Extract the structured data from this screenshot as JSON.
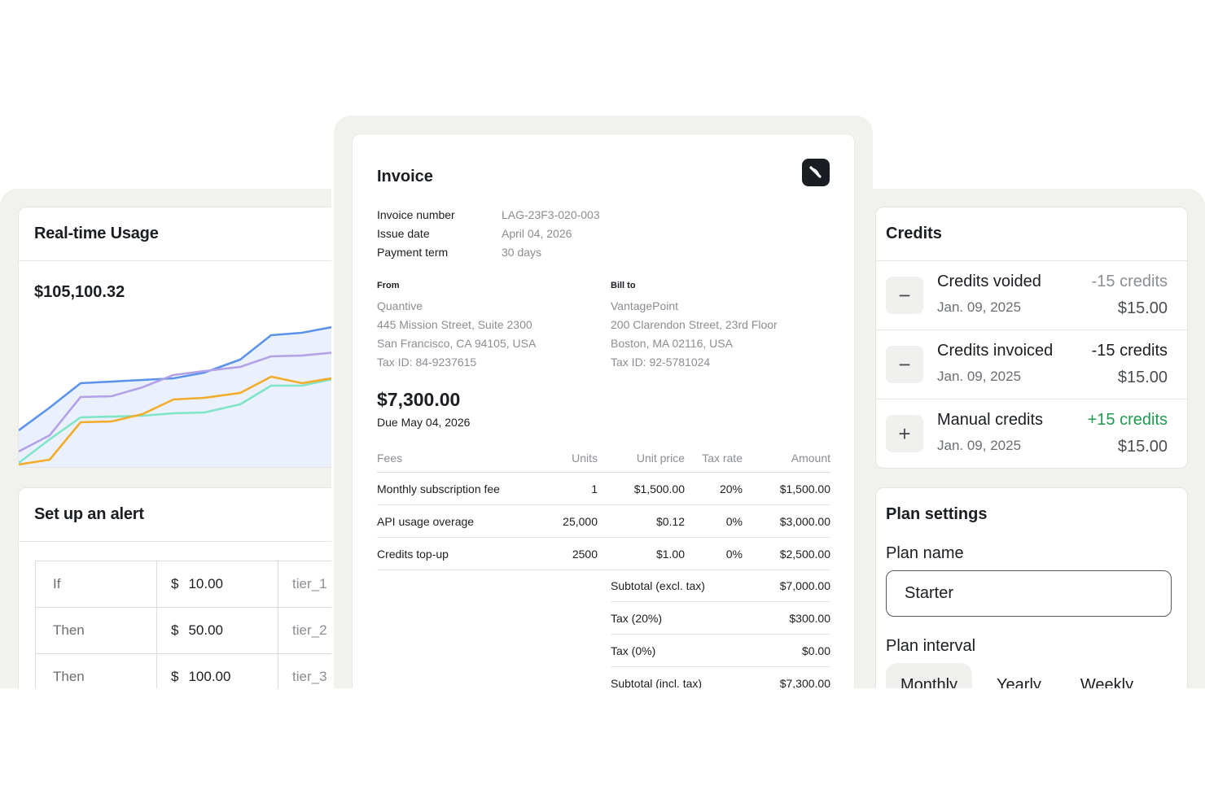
{
  "usage": {
    "title": "Real-time Usage",
    "amount": "$105,100.32",
    "colors": {
      "blue": "#5b93ea",
      "purple": "#b3a2e8",
      "teal": "#7fe5c6",
      "orange": "#f3ab2a",
      "fill": "#e6eefb"
    }
  },
  "alert": {
    "title": "Set up an alert",
    "rows": [
      {
        "cond": "If",
        "currency": "$",
        "value": "10.00",
        "tier": "tier_1"
      },
      {
        "cond": "Then",
        "currency": "$",
        "value": "50.00",
        "tier": "tier_2"
      },
      {
        "cond": "Then",
        "currency": "$",
        "value": "100.00",
        "tier": "tier_3"
      }
    ]
  },
  "invoice": {
    "title": "Invoice",
    "meta": [
      {
        "label": "Invoice number",
        "value": "LAG-23F3-020-003"
      },
      {
        "label": "Issue date",
        "value": "April 04, 2026"
      },
      {
        "label": "Payment term",
        "value": "30 days"
      }
    ],
    "from": {
      "label": "From",
      "lines": [
        "Quantive",
        "445 Mission Street, Suite 2300",
        "San Francisco, CA 94105, USA",
        "Tax ID: 84-9237615"
      ]
    },
    "bill_to": {
      "label": "Bill to",
      "lines": [
        "VantagePoint",
        "200 Clarendon Street, 23rd Floor",
        "Boston, MA 02116, USA",
        "Tax ID: 92-5781024"
      ]
    },
    "total": "$7,300.00",
    "due": "Due May 04, 2026",
    "fees_headers": [
      "Fees",
      "Units",
      "Unit price",
      "Tax rate",
      "Amount"
    ],
    "fees": [
      [
        "Monthly subscription fee",
        "1",
        "$1,500.00",
        "20%",
        "$1,500.00"
      ],
      [
        "API usage overage",
        "25,000",
        "$0.12",
        "0%",
        "$3,000.00"
      ],
      [
        "Credits top-up",
        "2500",
        "$1.00",
        "0%",
        "$2,500.00"
      ]
    ],
    "summary": [
      {
        "label": "Subtotal (excl. tax)",
        "value": "$7,000.00"
      },
      {
        "label": "Tax (20%)",
        "value": "$300.00"
      },
      {
        "label": "Tax (0%)",
        "value": "$0.00"
      },
      {
        "label": "Subtotal (incl. tax)",
        "value": "$7,300.00"
      }
    ]
  },
  "credits": {
    "title": "Credits",
    "items": [
      {
        "icon": "minus-icon",
        "glyph": "−",
        "title": "Credits voided",
        "date": "Jan. 09, 2025",
        "amount": "-15 credits",
        "amount_color": "#8a8e93",
        "price": "$15.00"
      },
      {
        "icon": "minus-icon",
        "glyph": "−",
        "title": "Credits invoiced",
        "date": "Jan. 09, 2025",
        "amount": "-15 credits",
        "amount_color": "#1a1d21",
        "price": "$15.00"
      },
      {
        "icon": "plus-icon",
        "glyph": "+",
        "title": "Manual credits",
        "date": "Jan. 09, 2025",
        "amount": "+15 credits",
        "amount_color": "#1f9a4f",
        "price": "$15.00"
      }
    ]
  },
  "plan": {
    "title": "Plan settings",
    "name_label": "Plan name",
    "name_value": "Starter",
    "interval_label": "Plan interval",
    "intervals": [
      "Monthly",
      "Yearly",
      "Weekly"
    ],
    "selected_interval": "Monthly"
  }
}
